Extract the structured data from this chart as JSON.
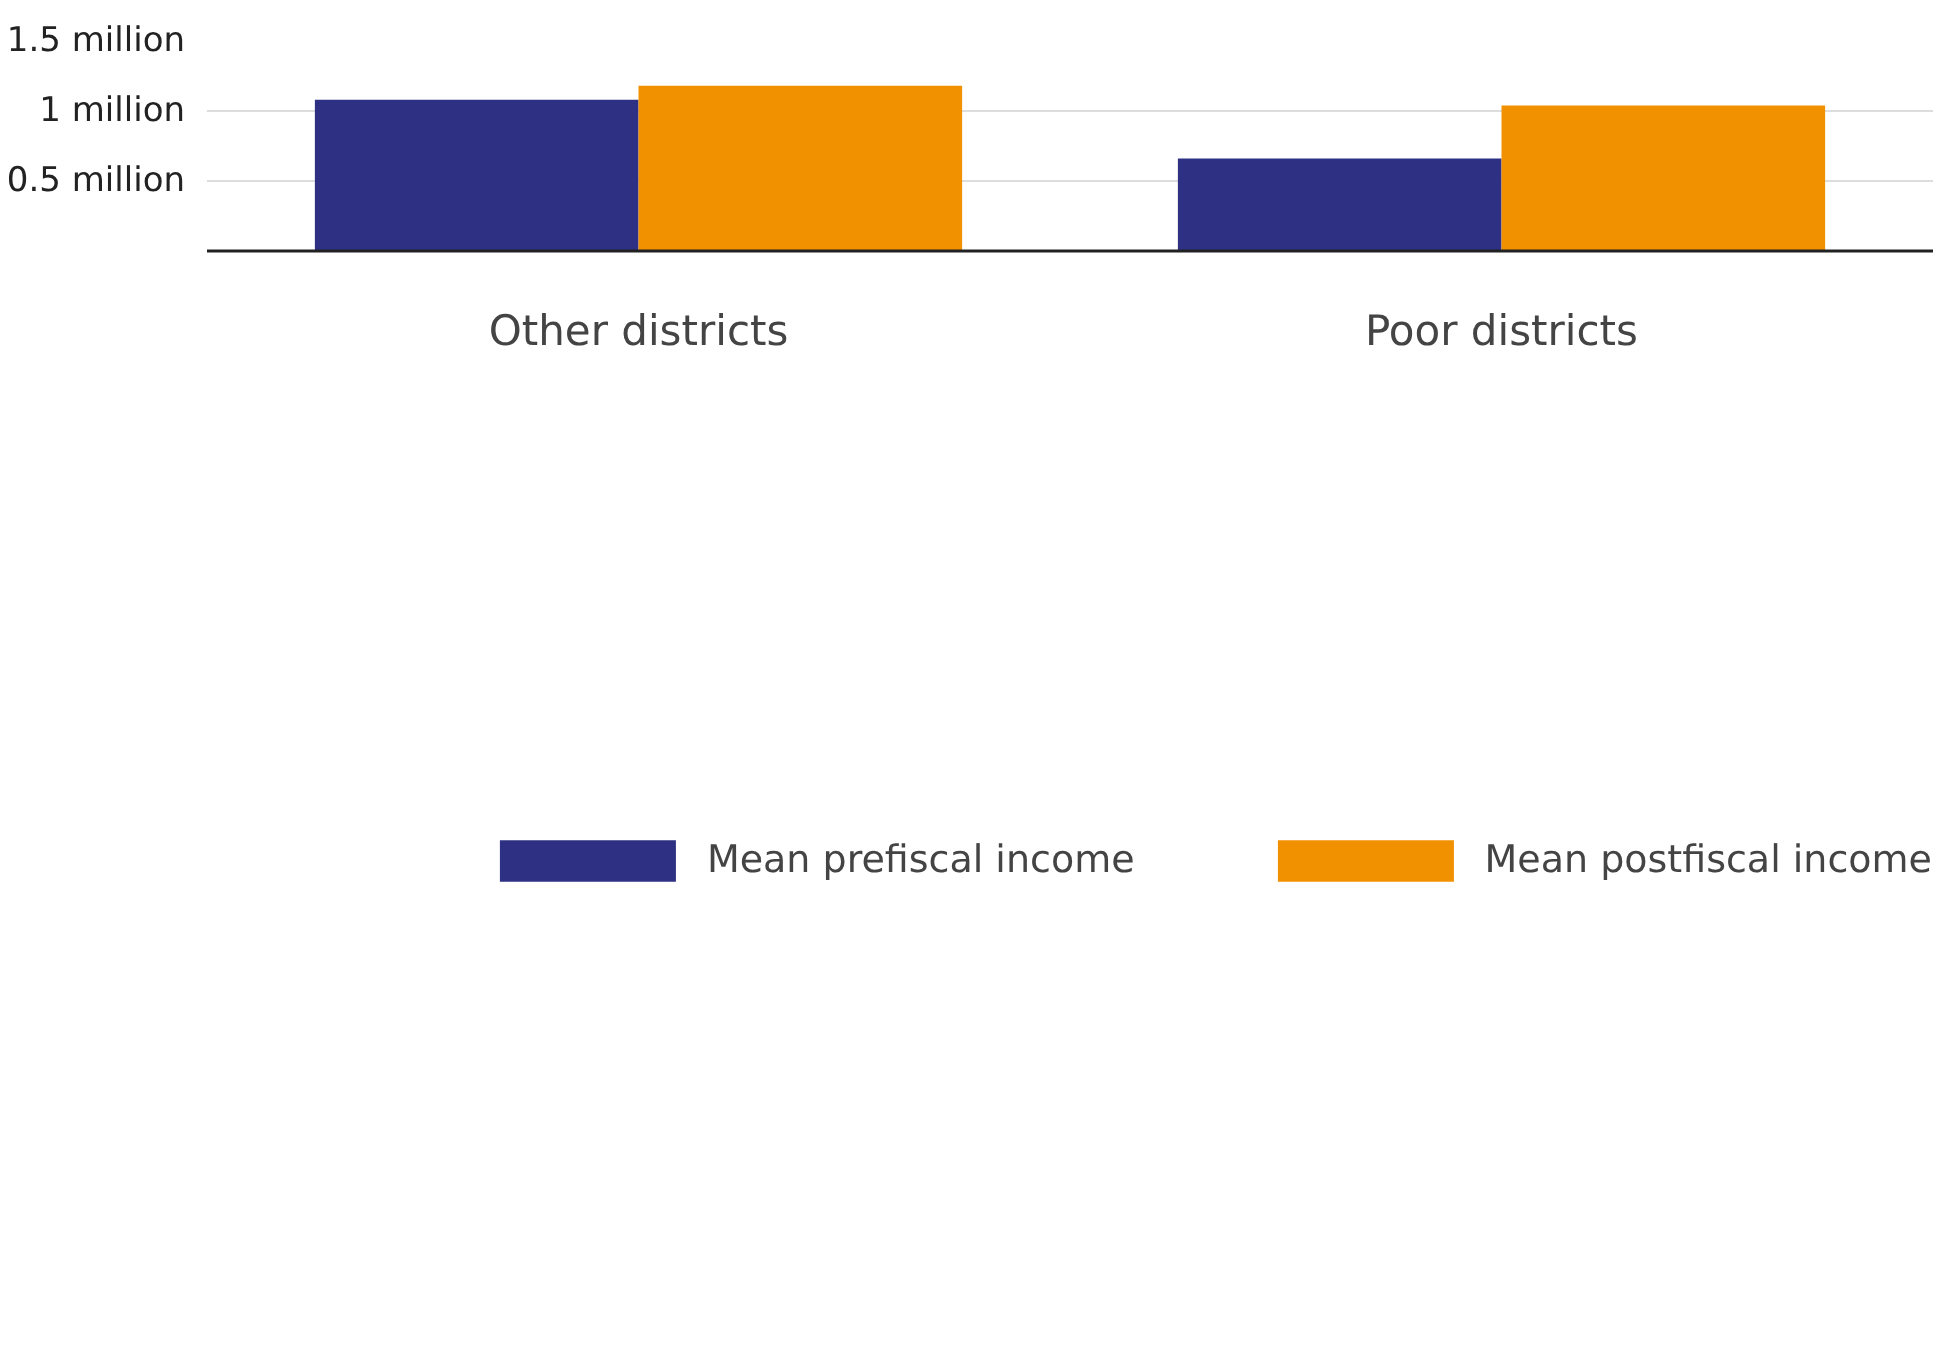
{
  "chart_data": {
    "type": "bar",
    "categories": [
      "Other districts",
      "Poor districts"
    ],
    "series": [
      {
        "name": "Mean prefiscal income",
        "color": "#2e3083",
        "values": [
          1080000,
          660000
        ]
      },
      {
        "name": "Mean postfiscal income",
        "color": "#f29100",
        "values": [
          1180000,
          1040000
        ]
      }
    ],
    "ylim": [
      0,
      1500000
    ],
    "yticks": [
      {
        "value": 500000,
        "label": "0.5 million"
      },
      {
        "value": 1000000,
        "label": "1 million"
      },
      {
        "value": 1500000,
        "label": "1.5 million"
      }
    ],
    "grid": "y",
    "legend": "bottom"
  }
}
